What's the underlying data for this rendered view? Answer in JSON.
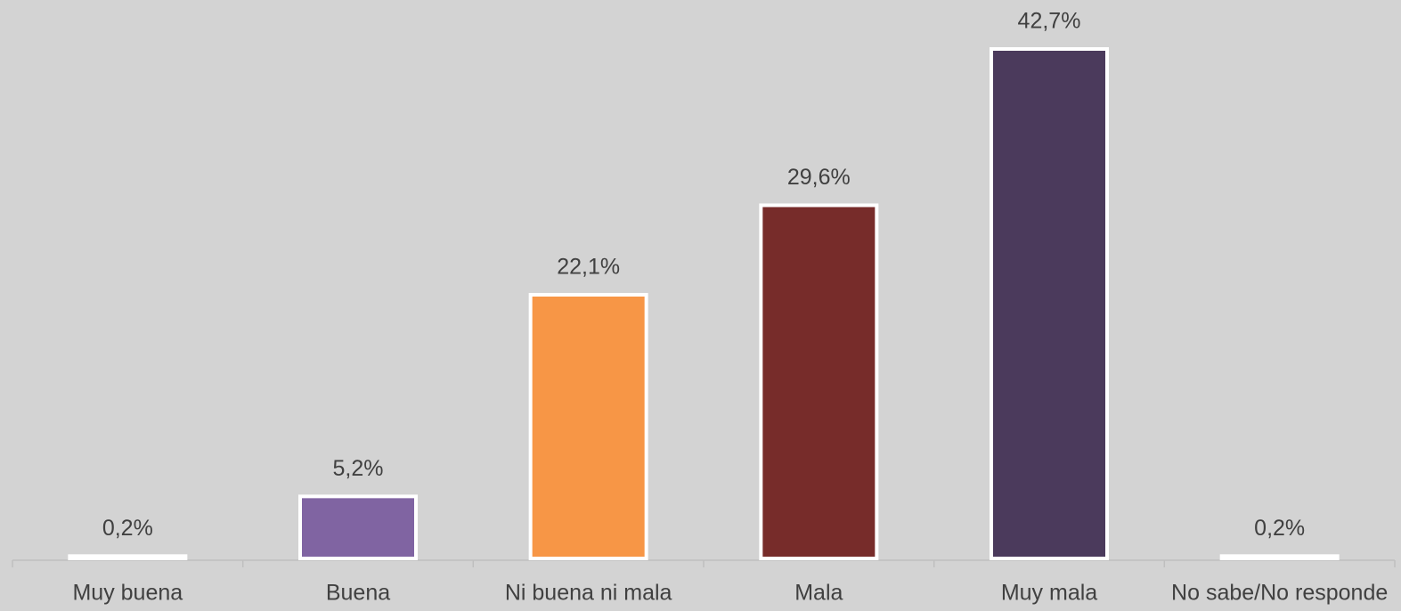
{
  "chart_data": {
    "type": "bar",
    "categories": [
      "Muy buena",
      "Buena",
      "Ni buena ni mala",
      "Mala",
      "Muy mala",
      "No sabe/No responde"
    ],
    "values": [
      0.2,
      5.2,
      22.1,
      29.6,
      42.7,
      0.2
    ],
    "value_labels": [
      "0,2%",
      "5,2%",
      "22,1%",
      "29,6%",
      "42,7%",
      "0,2%"
    ],
    "colors": [
      "#ffffff",
      "#8064a2",
      "#f79646",
      "#772c2a",
      "#4b3a5c",
      "#ffffff"
    ]
  }
}
